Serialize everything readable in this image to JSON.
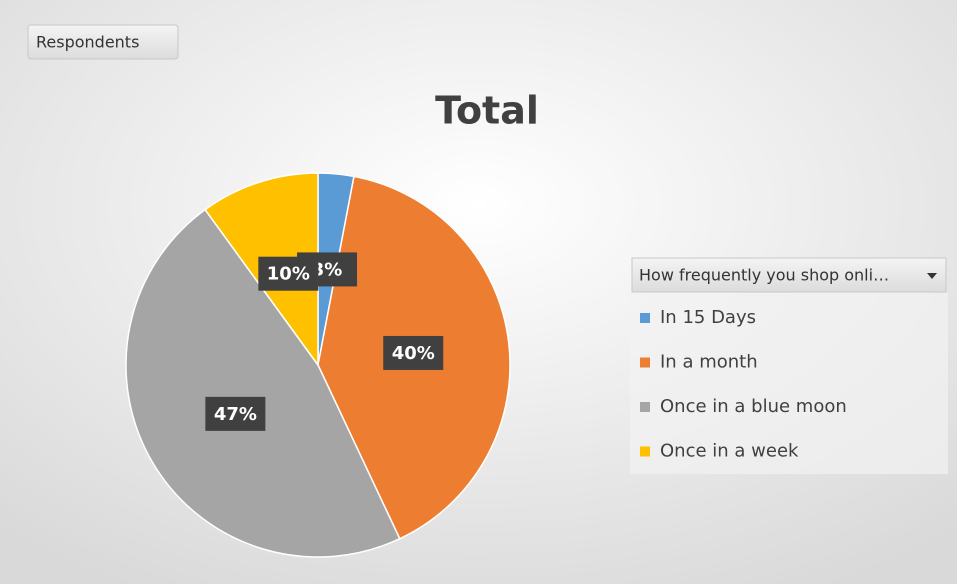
{
  "chart_data": {
    "type": "pie",
    "title": "Total",
    "data_field": "Respondents",
    "legend_title": "How frequently you shop onli…",
    "categories": [
      "In 15 Days",
      "In a month",
      "Once in a blue moon",
      "Once in a week"
    ],
    "values": [
      3,
      40,
      47,
      10
    ],
    "value_labels": [
      "3%",
      "40%",
      "47%",
      "10%"
    ],
    "colors": [
      "#5b9bd5",
      "#ed7d31",
      "#a5a5a5",
      "#ffc000"
    ],
    "legend": "right"
  }
}
